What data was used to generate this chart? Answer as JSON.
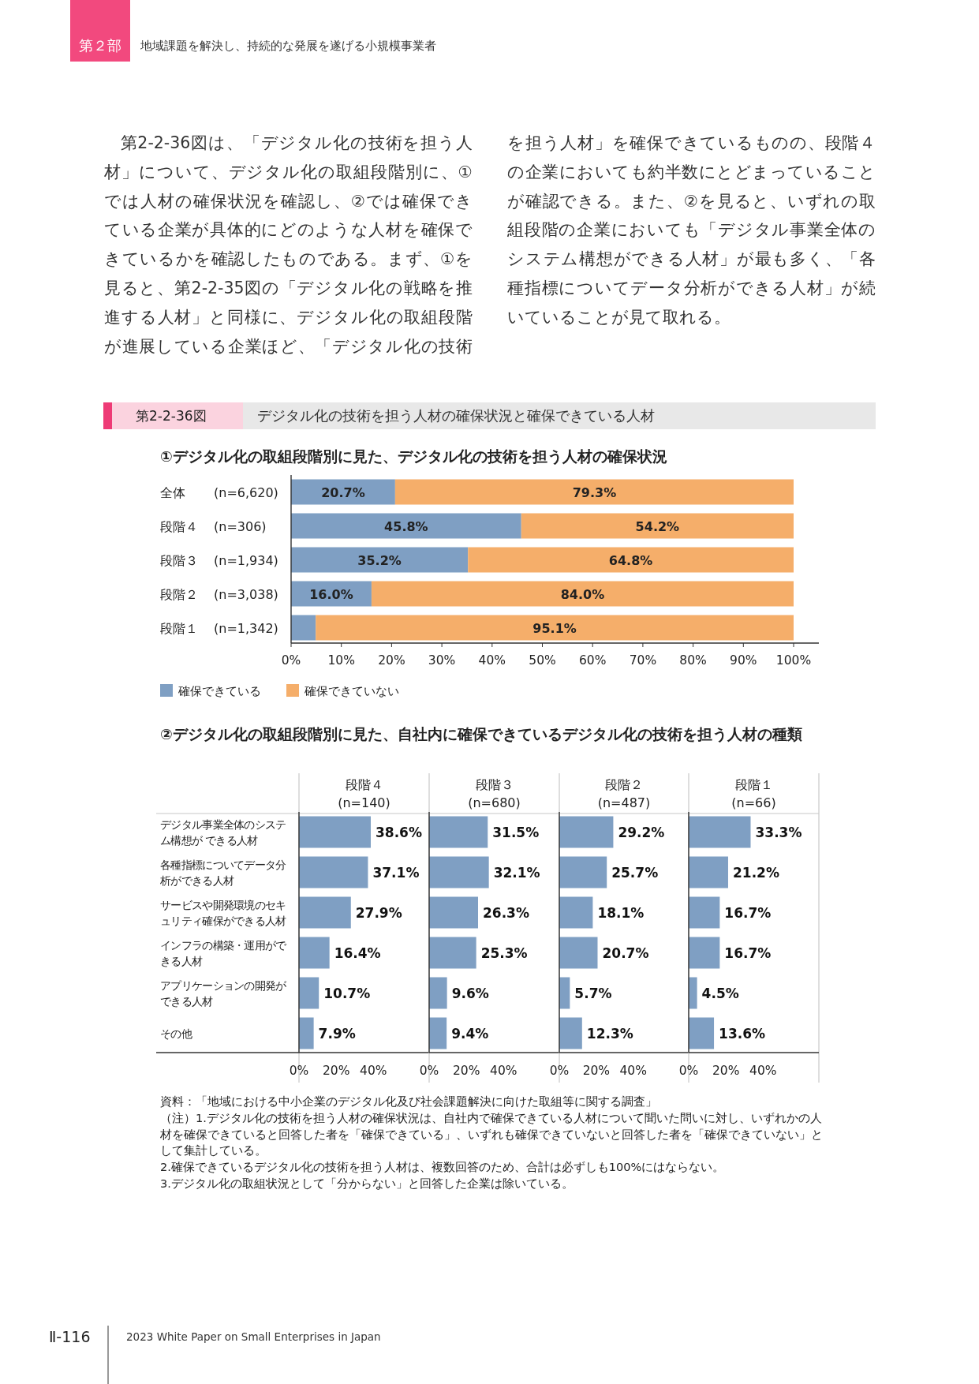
{
  "chart_data": [
    {
      "type": "other",
      "annotations": [
        "第２部",
        "地域課題を解決し、持続的な発展を遂げる小規模事業者",
        "第2-2-36図は、「デジタル化の技術を担う人材」について、デジタル化の取組段階別に、①では人材の確保状況を確認し、②では確保できている企業が具体的にどのような人材を確保できているかを確認したものである。まず、①を見ると、第2-2-35図の「デジタル化の戦略を推進する人材」と同様に、デジタル化の取組段階が進展している企業ほど、「デジタル化の技術を担う人材」を確保できているものの、段階４の企業においても約半数にとどまっていることが確認できる。また、②を見ると、いずれの取組段階の企業においても「デジタル事業全体のシステム構想ができる人材」が最も多く、「各種指標についてデータ分析ができる人材」が続いていることが見て取れる。",
        "第2-2-36図",
        "デジタル化の技術を担う人材の確保状況と確保できている人材",
        "Ⅱ-116",
        "2023 White Paper on Small Enterprises in Japan"
      ]
    },
    {
      "type": "bar",
      "orientation": "horizontal",
      "stacked": true,
      "title": "①デジタル化の取組段階別に見た、デジタル化の技術を担う人材の確保状況",
      "categories": [
        "全体 (n=6,620)",
        "段階４ (n=306)",
        "段階３ (n=1,934)",
        "段階２ (n=3,038)",
        "段階１ (n=1,342)"
      ],
      "series": [
        {
          "name": "確保できている",
          "color": "#7f9fc3",
          "values": [
            20.7,
            45.8,
            35.2,
            16.0,
            4.9
          ],
          "value_labels": [
            "20.7%",
            "45.8%",
            "35.2%",
            "16.0%",
            null
          ]
        },
        {
          "name": "確保できていない",
          "color": "#f5ae6a",
          "values": [
            79.3,
            54.2,
            64.8,
            84.0,
            95.1
          ],
          "value_labels": [
            "79.3%",
            "54.2%",
            "64.8%",
            "84.0%",
            "95.1%"
          ]
        }
      ],
      "xlim": [
        0,
        100
      ],
      "xticks": [
        {
          "value": 0,
          "label": "0%"
        },
        {
          "value": 10,
          "label": "10%"
        },
        {
          "value": 20,
          "label": "20%"
        },
        {
          "value": 30,
          "label": "30%"
        },
        {
          "value": 40,
          "label": "40%"
        },
        {
          "value": 50,
          "label": "50%"
        },
        {
          "value": 60,
          "label": "60%"
        },
        {
          "value": 70,
          "label": "70%"
        },
        {
          "value": 80,
          "label": "80%"
        },
        {
          "value": 90,
          "label": "90%"
        },
        {
          "value": 100,
          "label": "100%"
        }
      ],
      "legend": "bottom left"
    },
    {
      "type": "bar",
      "orientation": "horizontal",
      "title": "②デジタル化の取組段階別に見た、自社内に確保できているデジタル化の技術を担う人材の種類",
      "subtitle": "段階４\n(n=140)",
      "categories": [
        "デジタル事業全体のシステム構想が できる人材",
        "各種指標についてデータ分析ができる人材",
        "サービスや開発環境のセキュリティ確保ができる人材",
        "インフラの構築・運用ができる人材",
        "アプリケーションの開発ができる人材",
        "その他"
      ],
      "series": [
        {
          "color": "#7f9fc3",
          "values": [
            38.6,
            37.1,
            27.9,
            16.4,
            10.7,
            7.9
          ],
          "value_labels": [
            "38.6%",
            "37.1%",
            "27.9%",
            "16.4%",
            "10.7%",
            "7.9%"
          ]
        }
      ],
      "xlim": [
        0,
        70
      ],
      "xticks": [
        {
          "value": 0,
          "label": "0%"
        },
        {
          "value": 20,
          "label": "20%"
        },
        {
          "value": 40,
          "label": "40%"
        }
      ],
      "annotations": [
        "資料：「地域における中小企業のデジタル化及び社会課題解決に向けた取組等に関する調査」",
        "（注）1.デジタル化の技術を担う人材の確保状況は、自社内で確保できている人材について聞いた問いに対し、いずれかの人材を確保できていると回答した者を「確保できている」、いずれも確保できていないと回答した者を「確保できていない」として集計している。",
        "2.確保できているデジタル化の技術を担う人材は、複数回答のため、合計は必ずしも100%にはならない。",
        "3.デジタル化の取組状況として「分からない」と回答した企業は除いている。"
      ]
    },
    {
      "type": "bar",
      "orientation": "horizontal",
      "subtitle": "段階３\n(n=680)",
      "categories": [
        null,
        null,
        null,
        null,
        null,
        null
      ],
      "series": [
        {
          "color": "#7f9fc3",
          "values": [
            31.5,
            32.1,
            26.3,
            25.3,
            9.6,
            9.4
          ],
          "value_labels": [
            "31.5%",
            "32.1%",
            "26.3%",
            "25.3%",
            "9.6%",
            "9.4%"
          ]
        }
      ],
      "xlim": [
        0,
        70
      ],
      "xticks": [
        {
          "value": 0,
          "label": "0%"
        },
        {
          "value": 20,
          "label": "20%"
        },
        {
          "value": 40,
          "label": "40%"
        }
      ],
      "tick_labels": "x"
    },
    {
      "type": "bar",
      "orientation": "horizontal",
      "subtitle": "段階２\n(n=487)",
      "categories": [
        null,
        null,
        null,
        null,
        null,
        null
      ],
      "series": [
        {
          "color": "#7f9fc3",
          "values": [
            29.2,
            25.7,
            18.1,
            20.7,
            5.7,
            12.3
          ],
          "value_labels": [
            "29.2%",
            "25.7%",
            "18.1%",
            "20.7%",
            "5.7%",
            "12.3%"
          ]
        }
      ],
      "xlim": [
        0,
        70
      ],
      "xticks": [
        {
          "value": 0,
          "label": "0%"
        },
        {
          "value": 20,
          "label": "20%"
        },
        {
          "value": 40,
          "label": "40%"
        }
      ],
      "tick_labels": "x"
    },
    {
      "type": "bar",
      "orientation": "horizontal",
      "subtitle": "段階１\n(n=66)",
      "categories": [
        null,
        null,
        null,
        null,
        null,
        null
      ],
      "series": [
        {
          "color": "#7f9fc3",
          "values": [
            33.3,
            21.2,
            16.7,
            16.7,
            4.5,
            13.6
          ],
          "value_labels": [
            "33.3%",
            "21.2%",
            "16.7%",
            "16.7%",
            "4.5%",
            "13.6%"
          ]
        }
      ],
      "xlim": [
        0,
        70
      ],
      "xticks": [
        {
          "value": 0,
          "label": "0%"
        },
        {
          "value": 20,
          "label": "20%"
        },
        {
          "value": 40,
          "label": "40%"
        }
      ],
      "tick_labels": "x"
    }
  ]
}
